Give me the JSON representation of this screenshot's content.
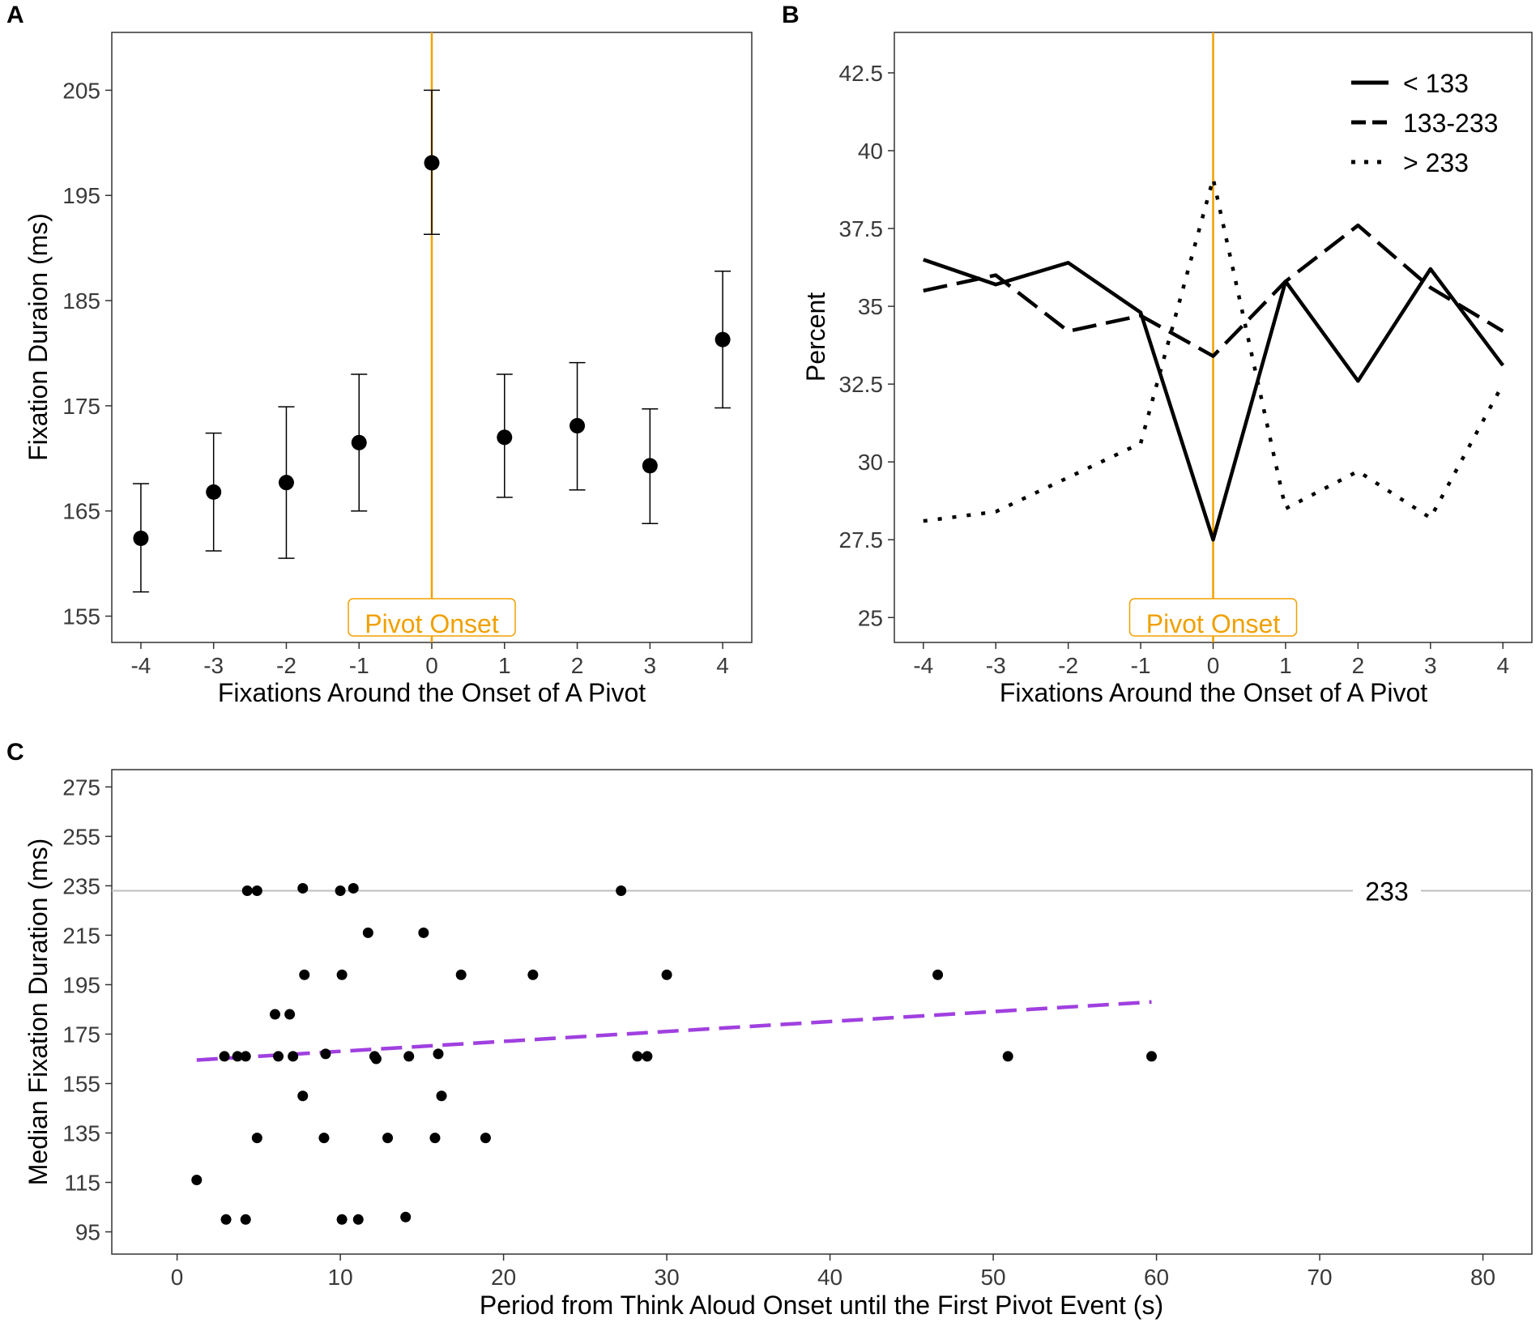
{
  "colors": {
    "onset": "#F0A000",
    "fit": "#A040E0",
    "ref_line": "#BEBEBE",
    "points": "#000000",
    "frame": "#333333"
  },
  "panels": {
    "a": {
      "letter": "A"
    },
    "b": {
      "letter": "B"
    },
    "c": {
      "letter": "C"
    }
  },
  "chart_data": [
    {
      "panel": "A",
      "type": "scatter",
      "subtype": "point-with-error-bars",
      "xlabel": "Fixations Around the Onset of A Pivot",
      "ylabel": "Fixation Duraion (ms)",
      "xlim": [
        -4.4,
        4.4
      ],
      "ylim": [
        152.5,
        210.5
      ],
      "x_ticks": [
        -4,
        -3,
        -2,
        -1,
        0,
        1,
        2,
        3,
        4
      ],
      "y_ticks": [
        155,
        165,
        175,
        185,
        195,
        205
      ],
      "x": [
        -4,
        -3,
        -2,
        -1,
        0,
        1,
        2,
        3,
        4
      ],
      "y": [
        162.4,
        166.8,
        167.7,
        171.5,
        198.1,
        172.0,
        173.1,
        169.3,
        181.3
      ],
      "y_low": [
        157.3,
        161.2,
        160.5,
        165.0,
        191.3,
        166.3,
        167.0,
        163.8,
        174.8
      ],
      "y_high": [
        167.6,
        172.4,
        174.9,
        178.0,
        205.0,
        178.0,
        179.1,
        174.7,
        187.8
      ],
      "annotation": {
        "x": 0,
        "label": "Pivot Onset"
      }
    },
    {
      "panel": "B",
      "type": "line",
      "xlabel": "Fixations Around the Onset of A Pivot",
      "ylabel": "Percent",
      "xlim": [
        -4.4,
        4.4
      ],
      "ylim": [
        24.2,
        43.8
      ],
      "x_ticks": [
        -4,
        -3,
        -2,
        -1,
        0,
        1,
        2,
        3,
        4
      ],
      "y_ticks": [
        "25",
        "27.5",
        "30",
        "32.5",
        "35",
        "37.5",
        "40",
        "42.5"
      ],
      "x": [
        -4,
        -3,
        -2,
        -1,
        0,
        1,
        2,
        3,
        4
      ],
      "series": [
        {
          "name": "< 133",
          "linestyle": "solid",
          "values": [
            36.5,
            35.7,
            36.4,
            34.8,
            27.5,
            35.8,
            32.6,
            36.2,
            33.1
          ]
        },
        {
          "name": "133-233",
          "linestyle": "dashed",
          "values": [
            35.5,
            36.0,
            34.2,
            34.7,
            33.4,
            35.8,
            37.6,
            35.6,
            34.2
          ]
        },
        {
          "name": "> 233",
          "linestyle": "dotted",
          "values": [
            28.1,
            28.4,
            29.5,
            30.6,
            39.1,
            28.5,
            29.7,
            28.2,
            32.5
          ]
        }
      ],
      "legend_position": "top-right",
      "annotation": {
        "x": 0,
        "label": "Pivot Onset"
      }
    },
    {
      "panel": "C",
      "type": "scatter",
      "xlabel": "Period from Think Aloud Onset until the First Pivot Event (s)",
      "ylabel": "Median Fixation Duration (ms)",
      "xlim": [
        -4,
        83
      ],
      "ylim": [
        86,
        282
      ],
      "x_ticks": [
        0,
        10,
        20,
        30,
        40,
        50,
        60,
        70,
        80
      ],
      "y_ticks": [
        95,
        115,
        135,
        155,
        175,
        195,
        215,
        235,
        255,
        275
      ],
      "points": [
        [
          1.2,
          116
        ],
        [
          3,
          100
        ],
        [
          4.2,
          100
        ],
        [
          10.1,
          100
        ],
        [
          11.1,
          100
        ],
        [
          14,
          101
        ],
        [
          4.9,
          133
        ],
        [
          9,
          133
        ],
        [
          12.9,
          133
        ],
        [
          15.8,
          133
        ],
        [
          18.9,
          133
        ],
        [
          7.7,
          150
        ],
        [
          16.2,
          150
        ],
        [
          2.9,
          166
        ],
        [
          3.7,
          166
        ],
        [
          4.2,
          166
        ],
        [
          6.2,
          166
        ],
        [
          7.1,
          166
        ],
        [
          9.1,
          167
        ],
        [
          12.1,
          166
        ],
        [
          12.2,
          165
        ],
        [
          14.2,
          166
        ],
        [
          16,
          167
        ],
        [
          28.2,
          166
        ],
        [
          28.8,
          166
        ],
        [
          50.9,
          166
        ],
        [
          59.7,
          166
        ],
        [
          6,
          183
        ],
        [
          6.9,
          183
        ],
        [
          7.8,
          199
        ],
        [
          10.1,
          199
        ],
        [
          17.4,
          199
        ],
        [
          21.8,
          199
        ],
        [
          30,
          199
        ],
        [
          46.6,
          199
        ],
        [
          11.7,
          216
        ],
        [
          15.1,
          216
        ],
        [
          4.3,
          233
        ],
        [
          4.9,
          233
        ],
        [
          7.7,
          234
        ],
        [
          10,
          233
        ],
        [
          10.8,
          234
        ],
        [
          27.2,
          233
        ]
      ],
      "reference_line": {
        "y": 233,
        "label": "233"
      },
      "fit_line": {
        "x": [
          1.2,
          59.7
        ],
        "y": [
          164.5,
          188.0
        ],
        "style": "dashed"
      }
    }
  ]
}
